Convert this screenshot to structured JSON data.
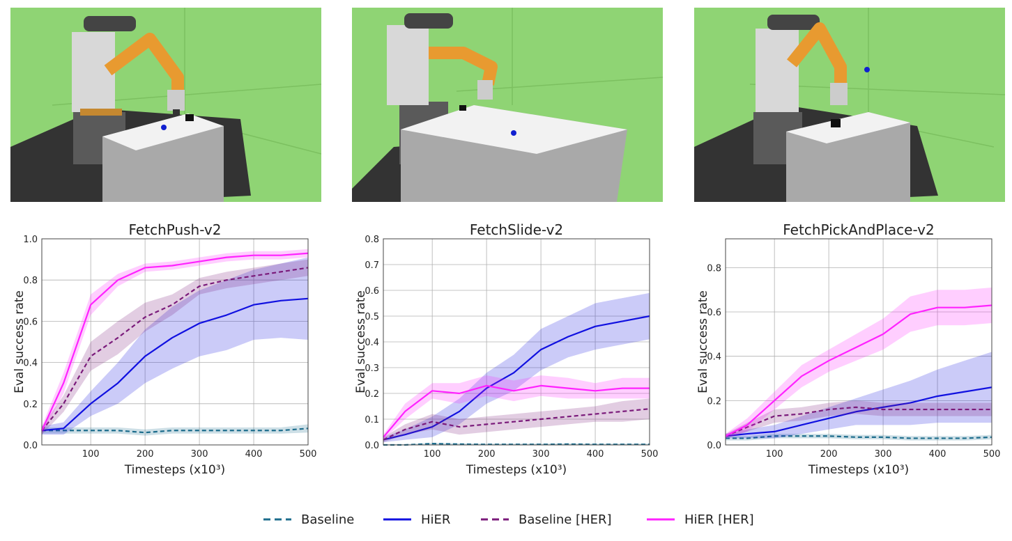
{
  "colors": {
    "baseline": "#1c6c8c",
    "hier": "#1010e0",
    "baseline_her": "#7a1a7a",
    "hier_her": "#ff22ff",
    "scene_ground": "#8fd474",
    "scene_table": "#a9a9a9",
    "scene_robot_arm": "#e89a30"
  },
  "scenes": [
    {
      "robot": "fetch",
      "environment": "push"
    },
    {
      "robot": "fetch",
      "environment": "slide"
    },
    {
      "robot": "fetch",
      "environment": "pick-and-place"
    }
  ],
  "legend": [
    {
      "label": "Baseline",
      "style": "dashed",
      "color": "#1c6c8c"
    },
    {
      "label": "HiER",
      "style": "solid",
      "color": "#1010e0"
    },
    {
      "label": "Baseline [HER]",
      "style": "dashed",
      "color": "#7a1a7a"
    },
    {
      "label": "HiER [HER]",
      "style": "solid",
      "color": "#ff22ff"
    }
  ],
  "chart_data": [
    {
      "type": "line",
      "title": "FetchPush-v2",
      "xlabel": "Timesteps (x10³)",
      "ylabel": "Eval success rate",
      "xlim": [
        10,
        500
      ],
      "ylim": [
        0,
        1.0
      ],
      "xticks": [
        100,
        200,
        300,
        400,
        500
      ],
      "yticks": [
        "0.0",
        "0.2",
        "0.4",
        "0.6",
        "0.8",
        "1.0"
      ],
      "grid": true,
      "x": [
        10,
        50,
        100,
        150,
        200,
        250,
        300,
        350,
        400,
        450,
        500
      ],
      "series": [
        {
          "name": "Baseline",
          "style": "dashed",
          "values": [
            0.07,
            0.07,
            0.07,
            0.07,
            0.06,
            0.07,
            0.07,
            0.07,
            0.07,
            0.07,
            0.08
          ],
          "band": [
            0.015,
            0.015,
            0.015,
            0.015,
            0.015,
            0.015,
            0.015,
            0.015,
            0.015,
            0.015,
            0.02
          ]
        },
        {
          "name": "HiER",
          "style": "solid",
          "values": [
            0.07,
            0.08,
            0.2,
            0.3,
            0.43,
            0.52,
            0.59,
            0.63,
            0.68,
            0.7,
            0.71
          ],
          "band": [
            0.02,
            0.03,
            0.06,
            0.1,
            0.13,
            0.15,
            0.16,
            0.17,
            0.17,
            0.18,
            0.2
          ]
        },
        {
          "name": "Baseline [HER]",
          "style": "dashed",
          "values": [
            0.07,
            0.2,
            0.43,
            0.52,
            0.62,
            0.68,
            0.77,
            0.8,
            0.82,
            0.84,
            0.86
          ],
          "band": [
            0.02,
            0.04,
            0.07,
            0.08,
            0.07,
            0.05,
            0.04,
            0.04,
            0.04,
            0.04,
            0.04
          ]
        },
        {
          "name": "HiER [HER]",
          "style": "solid",
          "values": [
            0.07,
            0.3,
            0.68,
            0.8,
            0.86,
            0.87,
            0.89,
            0.91,
            0.92,
            0.92,
            0.93
          ],
          "band": [
            0.02,
            0.05,
            0.05,
            0.03,
            0.02,
            0.02,
            0.02,
            0.02,
            0.02,
            0.02,
            0.02
          ]
        }
      ]
    },
    {
      "type": "line",
      "title": "FetchSlide-v2",
      "xlabel": "Timesteps (x10³)",
      "ylabel": "Eval success rate",
      "xlim": [
        10,
        500
      ],
      "ylim": [
        0,
        0.8
      ],
      "xticks": [
        100,
        200,
        300,
        400,
        500
      ],
      "yticks": [
        "0.0",
        "0.1",
        "0.2",
        "0.3",
        "0.4",
        "0.5",
        "0.6",
        "0.7",
        "0.8"
      ],
      "grid": true,
      "x": [
        10,
        50,
        100,
        150,
        200,
        250,
        300,
        350,
        400,
        450,
        500
      ],
      "series": [
        {
          "name": "Baseline",
          "style": "dashed",
          "values": [
            0.0,
            0.0,
            0.005,
            0.003,
            0.002,
            0.002,
            0.002,
            0.003,
            0.002,
            0.002,
            0.002
          ],
          "band": [
            0.003,
            0.003,
            0.003,
            0.003,
            0.003,
            0.003,
            0.003,
            0.003,
            0.003,
            0.003,
            0.003
          ]
        },
        {
          "name": "HiER",
          "style": "solid",
          "values": [
            0.02,
            0.04,
            0.07,
            0.13,
            0.22,
            0.28,
            0.37,
            0.42,
            0.46,
            0.48,
            0.5
          ],
          "band": [
            0.01,
            0.02,
            0.04,
            0.05,
            0.06,
            0.07,
            0.08,
            0.08,
            0.09,
            0.09,
            0.09
          ]
        },
        {
          "name": "Baseline [HER]",
          "style": "dashed",
          "values": [
            0.02,
            0.06,
            0.09,
            0.07,
            0.08,
            0.09,
            0.1,
            0.11,
            0.12,
            0.13,
            0.14
          ],
          "band": [
            0.01,
            0.02,
            0.03,
            0.03,
            0.03,
            0.03,
            0.03,
            0.03,
            0.03,
            0.04,
            0.04
          ]
        },
        {
          "name": "HiER [HER]",
          "style": "solid",
          "values": [
            0.03,
            0.13,
            0.21,
            0.2,
            0.23,
            0.21,
            0.23,
            0.22,
            0.21,
            0.22,
            0.22
          ],
          "band": [
            0.01,
            0.03,
            0.03,
            0.04,
            0.04,
            0.04,
            0.04,
            0.04,
            0.03,
            0.04,
            0.04
          ]
        }
      ]
    },
    {
      "type": "line",
      "title": "FetchPickAndPlace-v2",
      "xlabel": "Timesteps (x10³)",
      "ylabel": "Eval success rate",
      "xlim": [
        10,
        500
      ],
      "ylim": [
        0,
        0.93
      ],
      "xticks": [
        100,
        200,
        300,
        400,
        500
      ],
      "yticks": [
        "0.0",
        "0.2",
        "0.4",
        "0.6",
        "0.8"
      ],
      "grid": true,
      "x": [
        10,
        50,
        100,
        150,
        200,
        250,
        300,
        350,
        400,
        450,
        500
      ],
      "series": [
        {
          "name": "Baseline",
          "style": "dashed",
          "values": [
            0.03,
            0.03,
            0.04,
            0.04,
            0.04,
            0.035,
            0.035,
            0.03,
            0.03,
            0.03,
            0.035
          ],
          "band": [
            0.01,
            0.01,
            0.01,
            0.01,
            0.01,
            0.01,
            0.01,
            0.01,
            0.01,
            0.01,
            0.01
          ]
        },
        {
          "name": "HiER",
          "style": "solid",
          "values": [
            0.04,
            0.05,
            0.06,
            0.09,
            0.12,
            0.15,
            0.17,
            0.19,
            0.22,
            0.24,
            0.26
          ],
          "band": [
            0.01,
            0.02,
            0.03,
            0.04,
            0.05,
            0.06,
            0.08,
            0.1,
            0.12,
            0.14,
            0.16
          ]
        },
        {
          "name": "Baseline [HER]",
          "style": "dashed",
          "values": [
            0.04,
            0.08,
            0.13,
            0.14,
            0.16,
            0.17,
            0.16,
            0.16,
            0.16,
            0.16,
            0.16
          ],
          "band": [
            0.01,
            0.02,
            0.03,
            0.03,
            0.03,
            0.03,
            0.03,
            0.03,
            0.03,
            0.03,
            0.03
          ]
        },
        {
          "name": "HiER [HER]",
          "style": "solid",
          "values": [
            0.04,
            0.09,
            0.2,
            0.31,
            0.38,
            0.44,
            0.5,
            0.59,
            0.62,
            0.62,
            0.63
          ],
          "band": [
            0.01,
            0.03,
            0.04,
            0.05,
            0.05,
            0.06,
            0.07,
            0.08,
            0.08,
            0.08,
            0.08
          ]
        }
      ]
    }
  ]
}
